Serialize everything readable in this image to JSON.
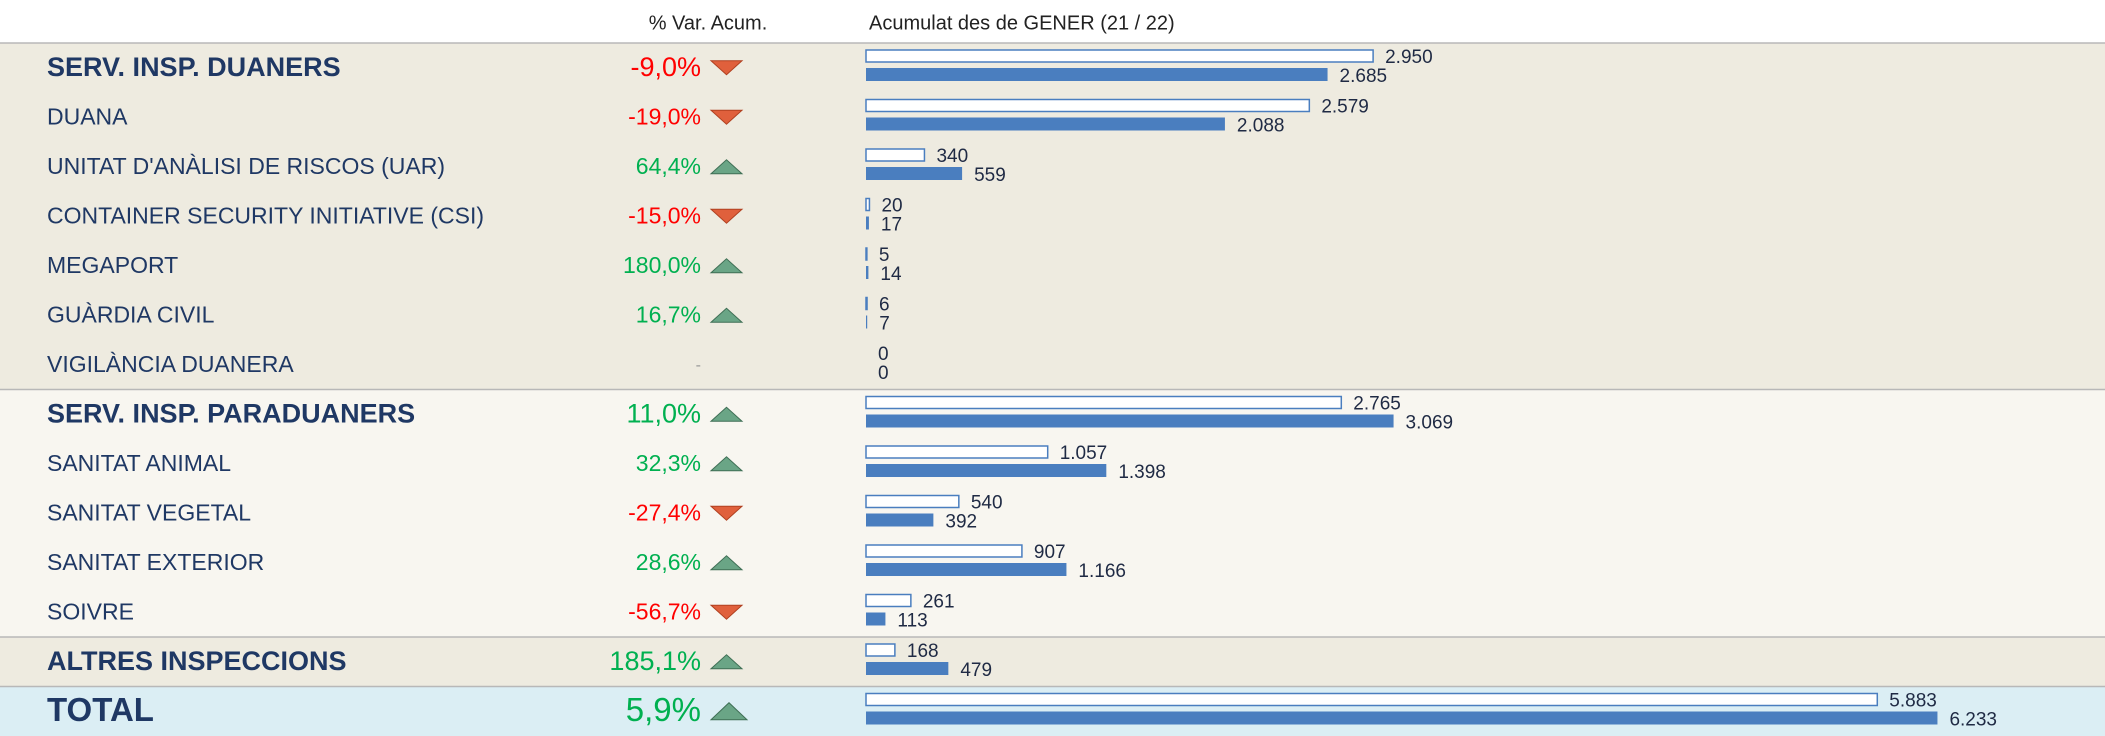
{
  "header": {
    "var": "% Var. Acum.",
    "bars": "Acumulat des de GENER (21 / 22)"
  },
  "colors": {
    "up": "#00b050",
    "down": "#ff0000",
    "none": "#999999",
    "name": "#1f3864",
    "bar": "#4a7ebf"
  },
  "rows": [
    {
      "name": "SERV. INSP. DUANERS",
      "level": "group",
      "var": -9.0,
      "var_label": "-9,0%",
      "prev": 2950,
      "prev_label": "2.950",
      "curr": 2685,
      "curr_label": "2.685"
    },
    {
      "name": "DUANA",
      "level": "item",
      "var": -19.0,
      "var_label": "-19,0%",
      "prev": 2579,
      "prev_label": "2.579",
      "curr": 2088,
      "curr_label": "2.088"
    },
    {
      "name": "UNITAT D'ANÀLISI DE RISCOS (UAR)",
      "level": "item",
      "var": 64.4,
      "var_label": "64,4%",
      "prev": 340,
      "prev_label": "340",
      "curr": 559,
      "curr_label": "559"
    },
    {
      "name": "CONTAINER SECURITY INITIATIVE (CSI)",
      "level": "item",
      "var": -15.0,
      "var_label": "-15,0%",
      "prev": 20,
      "prev_label": "20",
      "curr": 17,
      "curr_label": "17"
    },
    {
      "name": "MEGAPORT",
      "level": "item",
      "var": 180.0,
      "var_label": "180,0%",
      "prev": 5,
      "prev_label": "5",
      "curr": 14,
      "curr_label": "14"
    },
    {
      "name": "GUÀRDIA CIVIL",
      "level": "item",
      "var": 16.7,
      "var_label": "16,7%",
      "prev": 6,
      "prev_label": "6",
      "curr": 7,
      "curr_label": "7"
    },
    {
      "name": "VIGILÀNCIA DUANERA",
      "level": "item",
      "var": null,
      "var_label": "-",
      "prev": 0,
      "prev_label": "0",
      "curr": 0,
      "curr_label": "0"
    },
    {
      "name": "SERV. INSP. PARADUANERS",
      "level": "group",
      "var": 11.0,
      "var_label": "11,0%",
      "prev": 2765,
      "prev_label": "2.765",
      "curr": 3069,
      "curr_label": "3.069"
    },
    {
      "name": "SANITAT ANIMAL",
      "level": "item",
      "var": 32.3,
      "var_label": "32,3%",
      "prev": 1057,
      "prev_label": "1.057",
      "curr": 1398,
      "curr_label": "1.398"
    },
    {
      "name": "SANITAT VEGETAL",
      "level": "item",
      "var": -27.4,
      "var_label": "-27,4%",
      "prev": 540,
      "prev_label": "540",
      "curr": 392,
      "curr_label": "392"
    },
    {
      "name": "SANITAT EXTERIOR",
      "level": "item",
      "var": 28.6,
      "var_label": "28,6%",
      "prev": 907,
      "prev_label": "907",
      "curr": 1166,
      "curr_label": "1.166"
    },
    {
      "name": "SOIVRE",
      "level": "item",
      "var": -56.7,
      "var_label": "-56,7%",
      "prev": 261,
      "prev_label": "261",
      "curr": 113,
      "curr_label": "113"
    },
    {
      "name": "ALTRES INSPECCIONS",
      "level": "group",
      "var": 185.1,
      "var_label": "185,1%",
      "prev": 168,
      "prev_label": "168",
      "curr": 479,
      "curr_label": "479"
    },
    {
      "name": "TOTAL",
      "level": "total",
      "var": 5.9,
      "var_label": "5,9%",
      "prev": 5883,
      "prev_label": "5.883",
      "curr": 6233,
      "curr_label": "6.233"
    }
  ]
}
